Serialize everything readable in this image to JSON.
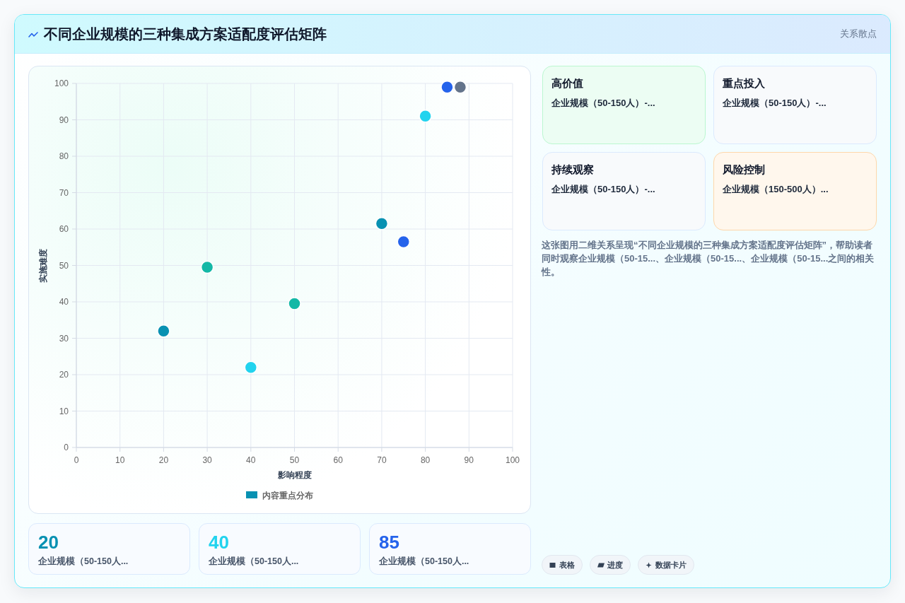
{
  "chart_data": [
    {
      "type": "scatter",
      "title": "不同企业规模的三种集成方案适配度评估矩阵",
      "xlabel": "影响程度",
      "ylabel": "实施难度",
      "x": [
        20,
        30,
        40,
        50,
        70,
        75,
        80,
        85,
        88
      ],
      "series": [
        {
          "name": "内容重点分布",
          "color": "#0891b2",
          "colors": [
            "#0891b2",
            "#14b8a6",
            "#22d3ee",
            "#14b8a6",
            "#0891b2",
            "#2563eb",
            "#22d3ee",
            "#2563eb",
            "#64748b"
          ],
          "values": [
            32,
            49.5,
            22,
            39.5,
            61.5,
            56.5,
            91,
            99,
            99
          ]
        }
      ],
      "xlim": [
        0,
        100
      ],
      "ylim": [
        0,
        100
      ],
      "xticks": [
        0,
        10,
        20,
        30,
        40,
        50,
        60,
        70,
        80,
        90,
        100
      ],
      "yticks": [
        0,
        10,
        20,
        30,
        40,
        50,
        60,
        70,
        80,
        90,
        100
      ],
      "grid": true,
      "legend": "bottom",
      "marker": "circle"
    },
    {
      "type": "other",
      "annotations": [
        "关系散点"
      ]
    },
    {
      "type": "other",
      "title": "高价值",
      "annotations": [
        "企业规模（50-150人）-..."
      ]
    },
    {
      "type": "other",
      "title": "重点投入",
      "annotations": [
        "企业规模（50-150人）-..."
      ]
    },
    {
      "type": "other",
      "title": "持续观察",
      "annotations": [
        "企业规模（50-150人）-..."
      ]
    },
    {
      "type": "other",
      "title": "风险控制",
      "annotations": [
        "企业规模（150-500人）..."
      ]
    },
    {
      "type": "other",
      "annotations": [
        "这张图用二维关系呈现“不同企业规模的三种集成方案适配度评估矩阵”，帮助读者同时观察企业规模（50-15...、企业规模（50-15...、企业规模（50-15...之间的相关性。"
      ]
    },
    {
      "type": "other",
      "categories": [
        "企业规模（50-150人...",
        "企业规模（50-150人...",
        "企业规模（50-150人..."
      ],
      "values": [
        20,
        40,
        85
      ],
      "data_labels": true
    },
    {
      "type": "other",
      "annotations": [
        "表格",
        "进度",
        "数据卡片"
      ]
    }
  ]
}
